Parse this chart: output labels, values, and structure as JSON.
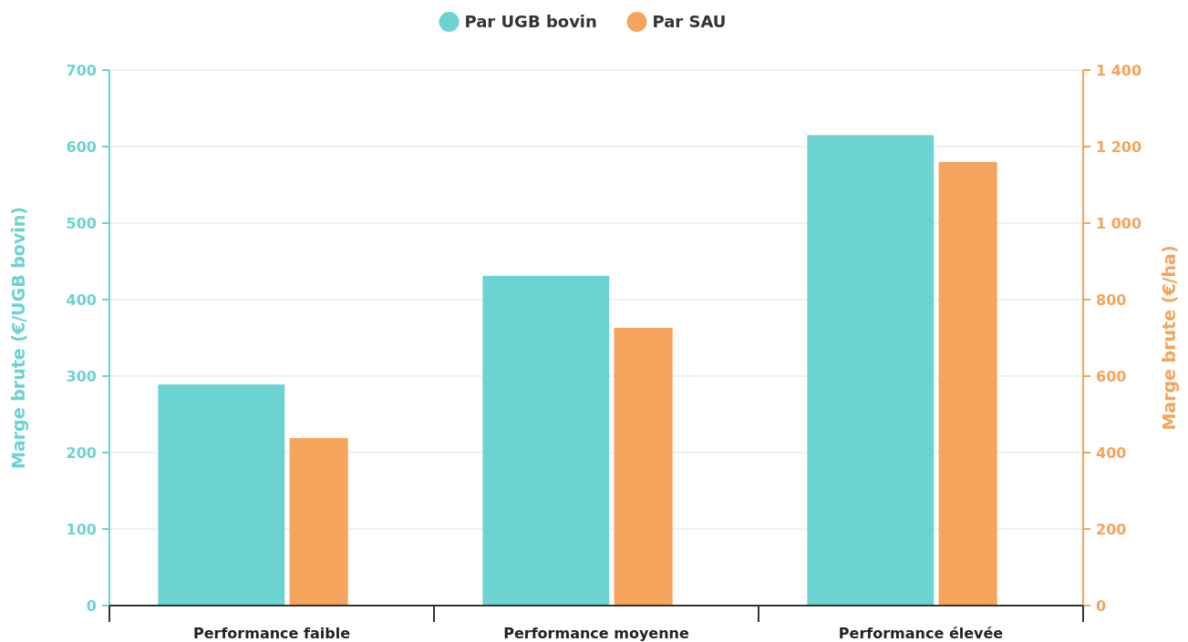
{
  "chart_data": {
    "type": "bar",
    "categories": [
      "Performance faible",
      "Performance moyenne",
      "Performance élevée"
    ],
    "series": [
      {
        "name": "Par UGB bovin",
        "color": "#6bd3d1",
        "values": [
          289,
          431,
          615
        ]
      },
      {
        "name": "Par SAU",
        "color": "#f5a45c",
        "values": [
          438,
          726,
          1160
        ],
        "axis": "y2"
      }
    ],
    "ylabel": "Marge brute (€/UGB bovin)",
    "y2label": "Marge brute (€/ha)",
    "ylim": [
      0,
      700
    ],
    "yticks": [
      0,
      100,
      200,
      300,
      400,
      500,
      600,
      700
    ],
    "y2lim": [
      0,
      1400
    ],
    "y2ticks": [
      0,
      {
        "value": 200,
        "label": "200"
      },
      {
        "value": 400,
        "label": "400"
      },
      {
        "value": 600,
        "label": "600"
      },
      {
        "value": 800,
        "label": "800"
      },
      {
        "value": 1000,
        "label": "1 000"
      },
      {
        "value": 1200,
        "label": "1 200"
      },
      {
        "value": 1400,
        "label": "1 400"
      }
    ],
    "grid": "y",
    "legend": "top"
  }
}
